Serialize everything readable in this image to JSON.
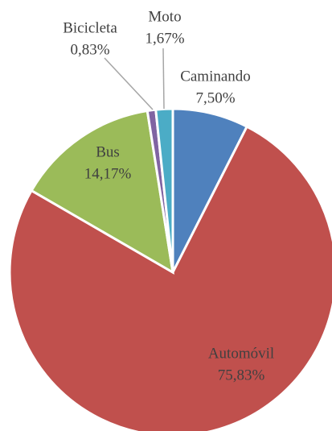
{
  "chart_data": {
    "type": "pie",
    "categories": [
      "Caminando",
      "Automóvil",
      "Bus",
      "Bicicleta",
      "Moto"
    ],
    "values": [
      7.5,
      75.83,
      14.17,
      0.83,
      1.67
    ],
    "value_labels": [
      "7,50%",
      "75,83%",
      "14,17%",
      "0,83%",
      "1,67%"
    ],
    "colors": [
      "#4f81bd",
      "#c0504d",
      "#9bbb59",
      "#8064a2",
      "#4bacc6"
    ]
  }
}
